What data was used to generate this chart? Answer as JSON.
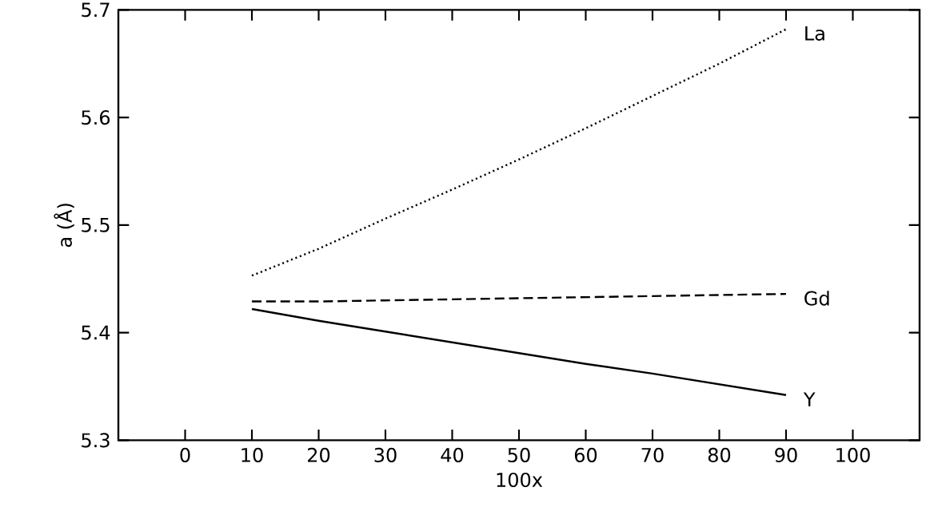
{
  "chart_data": {
    "type": "line",
    "xlabel": "100x",
    "ylabel": "a (Å)",
    "xlim": [
      -10,
      110
    ],
    "xticks": [
      0,
      10,
      20,
      30,
      40,
      50,
      60,
      70,
      80,
      90,
      100
    ],
    "ylim": [
      5.3,
      5.7
    ],
    "yticks": [
      5.3,
      5.4,
      5.5,
      5.6,
      5.7
    ],
    "grid": false,
    "legend": false,
    "marker": "none",
    "x": [
      10,
      20,
      30,
      40,
      50,
      60,
      70,
      80,
      90
    ],
    "series": [
      {
        "name": "La",
        "color": "#000000",
        "line_style": "dotted",
        "values": [
          5.453,
          5.478,
          5.506,
          5.533,
          5.561,
          5.59,
          5.62,
          5.65,
          5.682
        ]
      },
      {
        "name": "Gd",
        "color": "#000000",
        "line_style": "dashed",
        "values": [
          5.429,
          5.429,
          5.43,
          5.431,
          5.432,
          5.433,
          5.434,
          5.435,
          5.436
        ]
      },
      {
        "name": "Y",
        "color": "#000000",
        "line_style": "solid",
        "values": [
          5.422,
          5.411,
          5.401,
          5.391,
          5.381,
          5.371,
          5.362,
          5.352,
          5.342
        ]
      }
    ]
  }
}
